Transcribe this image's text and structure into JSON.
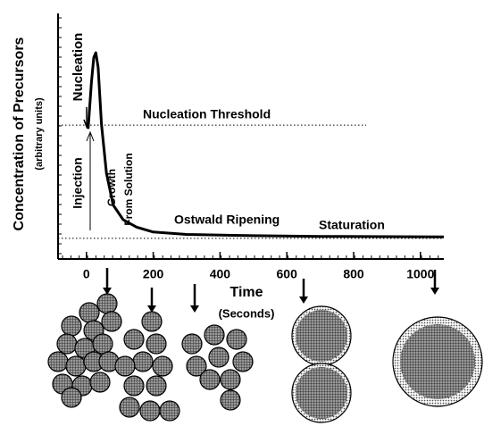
{
  "chart_data": {
    "type": "line",
    "xlabel": "Time",
    "xlabel_sub": "(Seconds)",
    "ylabel": "Concentration of Precursors",
    "ylabel_sub": "(arbitrary units)",
    "xlim": [
      -85,
      1070
    ],
    "ylim": [
      0,
      10
    ],
    "xticks": [
      0,
      200,
      400,
      600,
      800,
      1000
    ],
    "series": [
      {
        "color": "#000000",
        "x": [
          5,
          15,
          22,
          28,
          35,
          45,
          60,
          80,
          110,
          150,
          200,
          300,
          500,
          700,
          1070
        ],
        "values": [
          5.3,
          7.2,
          8.2,
          8.4,
          7.8,
          5.5,
          3.5,
          2.2,
          1.6,
          1.3,
          1.1,
          1.0,
          0.95,
          0.92,
          0.9
        ]
      }
    ],
    "threshold": 5.45,
    "saturation": 0.84,
    "annotations": [
      "Nucleation",
      "Nucleation Threshold",
      "Injection",
      "Growth",
      "From Solution",
      "Ostwald Ripening",
      "Staturation"
    ]
  }
}
